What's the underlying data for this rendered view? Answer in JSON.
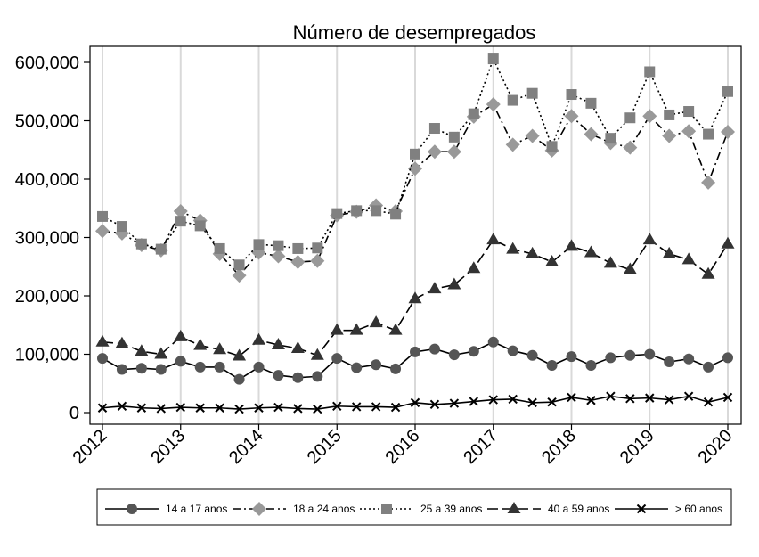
{
  "chart_data": {
    "type": "line",
    "title": "Número de desempregados",
    "xlabel": "",
    "ylabel": "",
    "ylim": [
      0,
      600000
    ],
    "xlim": [
      2012,
      2020
    ],
    "x_ticks": [
      "2012",
      "2013",
      "2014",
      "2015",
      "2016",
      "2017",
      "2018",
      "2019",
      "2020"
    ],
    "y_ticks": [
      "0",
      "100,000",
      "200,000",
      "300,000",
      "400,000",
      "500,000",
      "600,000"
    ],
    "grid": "vertical at year ticks",
    "legend_position": "bottom",
    "x": [
      2012.0,
      2012.25,
      2012.5,
      2012.75,
      2013.0,
      2013.25,
      2013.5,
      2013.75,
      2014.0,
      2014.25,
      2014.5,
      2014.75,
      2015.0,
      2015.25,
      2015.5,
      2015.75,
      2016.0,
      2016.25,
      2016.5,
      2016.75,
      2017.0,
      2017.25,
      2017.5,
      2017.75,
      2018.0,
      2018.25,
      2018.5,
      2018.75,
      2019.0,
      2019.25,
      2019.5,
      2019.75,
      2020.0
    ],
    "series": [
      {
        "name": "14 a 17 anos",
        "marker": "circle",
        "color": "#555555",
        "dash": "solid",
        "values": [
          93000,
          74000,
          76000,
          74000,
          88000,
          78000,
          78000,
          57000,
          78000,
          64000,
          60000,
          62000,
          93000,
          77000,
          82000,
          75000,
          104000,
          109000,
          99000,
          105000,
          121000,
          106000,
          98000,
          81000,
          96000,
          81000,
          94000,
          98000,
          100000,
          87000,
          92000,
          78000,
          94000
        ]
      },
      {
        "name": "18 a 24 anos",
        "marker": "diamond",
        "color": "#999999",
        "dash": "dashdot",
        "values": [
          311000,
          307000,
          287000,
          278000,
          345000,
          329000,
          272000,
          235000,
          274000,
          268000,
          258000,
          260000,
          338000,
          344000,
          355000,
          345000,
          418000,
          447000,
          447000,
          507000,
          528000,
          459000,
          474000,
          449000,
          508000,
          477000,
          462000,
          454000,
          508000,
          474000,
          482000,
          394000,
          481000
        ]
      },
      {
        "name": "25 a 39 anos",
        "marker": "square",
        "color": "#808080",
        "dash": "dotted",
        "values": [
          336000,
          319000,
          289000,
          280000,
          328000,
          320000,
          281000,
          253000,
          288000,
          286000,
          281000,
          282000,
          341000,
          346000,
          346000,
          340000,
          443000,
          487000,
          472000,
          512000,
          606000,
          535000,
          547000,
          456000,
          545000,
          530000,
          470000,
          505000,
          584000,
          510000,
          516000,
          477000,
          550000
        ]
      },
      {
        "name": "40 a 59 anos",
        "marker": "triangle",
        "color": "#333333",
        "dash": "longdash",
        "values": [
          121000,
          118000,
          105000,
          100000,
          130000,
          115000,
          108000,
          97000,
          124000,
          116000,
          110000,
          98000,
          141000,
          141000,
          154000,
          141000,
          195000,
          212000,
          219000,
          247000,
          296000,
          280000,
          272000,
          258000,
          285000,
          274000,
          256000,
          245000,
          296000,
          272000,
          262000,
          237000,
          289000
        ]
      },
      {
        "name": "> 60 anos",
        "marker": "x",
        "color": "#000000",
        "dash": "solid",
        "values": [
          8000,
          11000,
          8000,
          7000,
          9000,
          8000,
          8000,
          6000,
          8000,
          9000,
          7000,
          6000,
          11000,
          10000,
          10000,
          9000,
          17000,
          14000,
          16000,
          19000,
          22000,
          23000,
          17000,
          18000,
          26000,
          21000,
          28000,
          24000,
          25000,
          22000,
          28000,
          18000,
          26000
        ]
      }
    ]
  }
}
